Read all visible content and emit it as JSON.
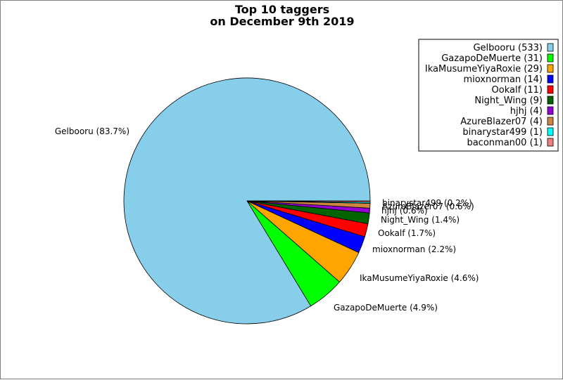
{
  "chart_data": {
    "type": "pie",
    "title": "Top 10 taggers",
    "subtitle": "on December 9th 2019",
    "legend_position": "top-right",
    "slices": [
      {
        "name": "Gelbooru",
        "value": 533,
        "legend_label": "Gelbooru (533)",
        "slice_label": "Gelbooru (83.7%)",
        "color": "#87ceeb"
      },
      {
        "name": "GazapoDeMuerte",
        "value": 31,
        "legend_label": "GazapoDeMuerte (31)",
        "slice_label": "GazapoDeMuerte (4.9%)",
        "color": "#00ff00"
      },
      {
        "name": "IkaMusumeYiyaRoxie",
        "value": 29,
        "legend_label": "IkaMusumeYiyaRoxie (29)",
        "slice_label": "IkaMusumeYiyaRoxie (4.6%)",
        "color": "#ffa500"
      },
      {
        "name": "mioxnorman",
        "value": 14,
        "legend_label": "mioxnorman (14)",
        "slice_label": "mioxnorman (2.2%)",
        "color": "#0000ff"
      },
      {
        "name": "Ookalf",
        "value": 11,
        "legend_label": "Ookalf (11)",
        "slice_label": "Ookalf (1.7%)",
        "color": "#ff0000"
      },
      {
        "name": "Night_Wing",
        "value": 9,
        "legend_label": "Night_Wing (9)",
        "slice_label": "Night_Wing (1.4%)",
        "color": "#006400"
      },
      {
        "name": "hjhj",
        "value": 4,
        "legend_label": "hjhj (4)",
        "slice_label": "hjhj (0.6%)",
        "color": "#9400d3"
      },
      {
        "name": "AzureBlazer07",
        "value": 4,
        "legend_label": "AzureBlazer07 (4)",
        "slice_label": "AzureBlazer07 (0.6%)",
        "color": "#cd853f"
      },
      {
        "name": "binarystar499",
        "value": 1,
        "legend_label": "binarystar499 (1)",
        "slice_label": "binarystar499 (0.2%)",
        "color": "#00ffff"
      },
      {
        "name": "baconman00",
        "value": 1,
        "legend_label": "baconman00 (1)",
        "slice_label": "",
        "color": "#f08080"
      }
    ]
  }
}
